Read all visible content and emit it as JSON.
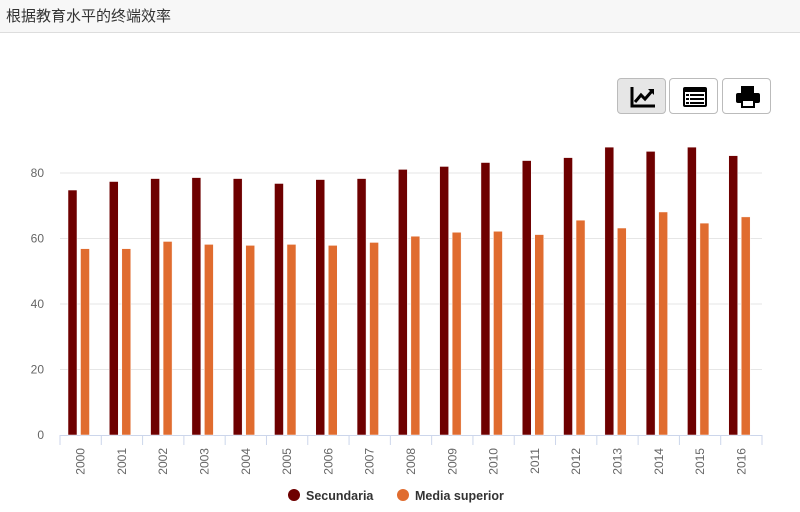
{
  "header": {
    "title": "根据教育水平的终端效率"
  },
  "toolbar": {
    "buttons": [
      {
        "icon": "line-chart-icon",
        "active": true
      },
      {
        "icon": "table-list-icon",
        "active": false
      },
      {
        "icon": "print-icon",
        "active": false
      }
    ]
  },
  "chart_data": {
    "type": "bar",
    "title": "",
    "xlabel": "",
    "ylabel": "",
    "ylim": [
      0,
      90
    ],
    "yticks": [
      0,
      20,
      40,
      60,
      80
    ],
    "grid": true,
    "legend": "bottom",
    "categories": [
      "2000",
      "2001",
      "2002",
      "2003",
      "2004",
      "2005",
      "2006",
      "2007",
      "2008",
      "2009",
      "2010",
      "2011",
      "2012",
      "2013",
      "2014",
      "2015",
      "2016"
    ],
    "series": [
      {
        "name": "Secundaria",
        "color": "#6e0000",
        "values": [
          74.8,
          77.4,
          78.3,
          78.6,
          78.3,
          76.8,
          78.0,
          78.3,
          81.1,
          82.0,
          83.2,
          83.8,
          84.7,
          87.9,
          86.6,
          87.9,
          85.3
        ]
      },
      {
        "name": "Media superior",
        "color": "#e06c2f",
        "values": [
          56.9,
          56.9,
          59.1,
          58.2,
          57.9,
          58.2,
          57.9,
          58.8,
          60.7,
          61.9,
          62.2,
          61.2,
          65.6,
          63.2,
          68.1,
          64.7,
          66.6
        ]
      }
    ]
  }
}
